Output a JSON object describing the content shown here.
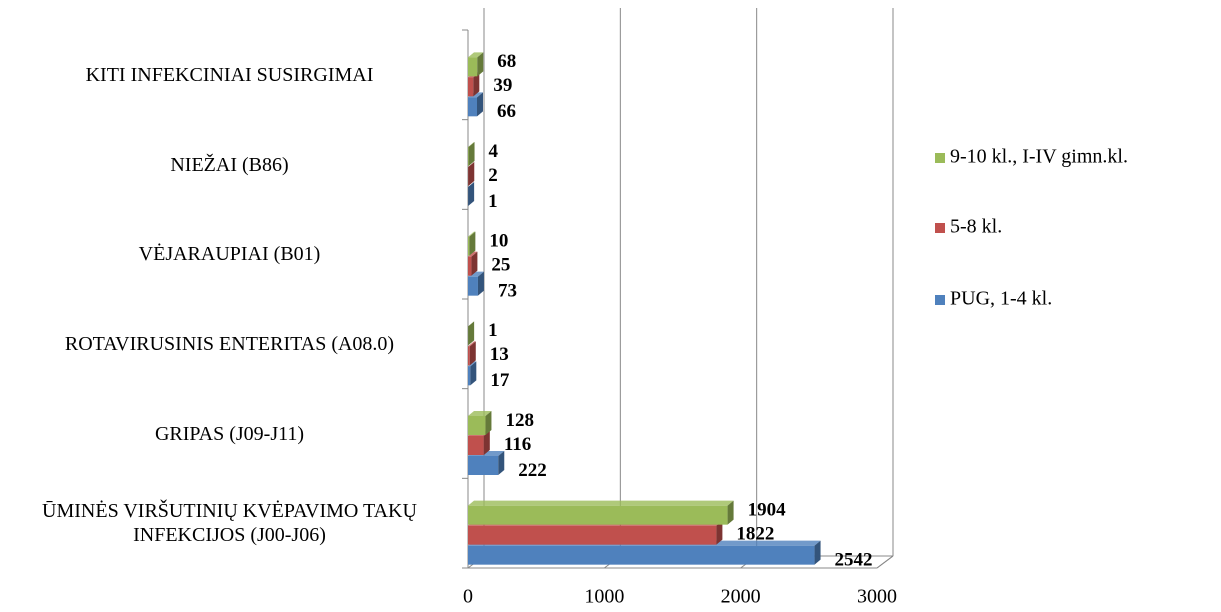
{
  "chart_data": {
    "type": "bar",
    "orientation": "horizontal",
    "categories": [
      "ŪMINĖS VIRŠUTINIŲ KVĖPAVIMO TAKŲ INFEKCIJOS (J00-J06)",
      "GRIPAS (J09-J11)",
      "ROTAVIRUSINIS ENTERITAS (A08.0)",
      "VĖJARAUPIAI (B01)",
      "NIEŽAI (B86)",
      "KITI INFEKCINIAI SUSIRGIMAI"
    ],
    "series": [
      {
        "name": "PUG, 1-4 kl.",
        "color": "#4f81bd",
        "values": [
          2542,
          222,
          17,
          73,
          1,
          66
        ]
      },
      {
        "name": "5-8 kl.",
        "color": "#c0504d",
        "values": [
          1822,
          116,
          13,
          25,
          2,
          39
        ]
      },
      {
        "name": "9-10 kl., I-IV gimn.kl.",
        "color": "#9bbb59",
        "values": [
          1904,
          128,
          1,
          10,
          4,
          68
        ]
      }
    ],
    "xlim": [
      0,
      3000
    ],
    "xticks": [
      0,
      1000,
      2000,
      3000
    ],
    "grid": true,
    "legend": "right"
  }
}
